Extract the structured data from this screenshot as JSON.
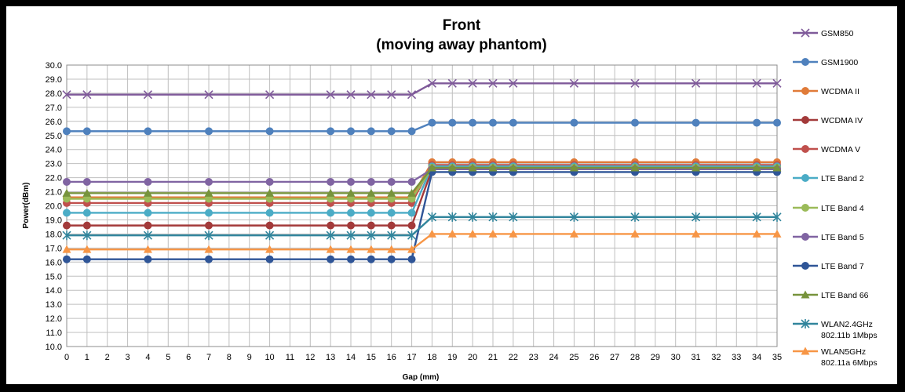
{
  "chart_data": {
    "type": "line",
    "title": "Front",
    "subtitle": "(moving away phantom)",
    "xlabel": "Gap (mm)",
    "ylabel": "Power(dBm)",
    "ylim": [
      10.0,
      30.0
    ],
    "ytick_step": 1.0,
    "x": [
      0,
      1,
      4,
      7,
      10,
      13,
      14,
      15,
      16,
      17,
      18,
      19,
      20,
      21,
      22,
      25,
      28,
      31,
      34,
      35
    ],
    "x_ticks": [
      0,
      1,
      2,
      3,
      4,
      5,
      6,
      7,
      8,
      9,
      10,
      11,
      12,
      13,
      14,
      15,
      16,
      17,
      18,
      19,
      20,
      21,
      22,
      23,
      24,
      25,
      26,
      27,
      28,
      29,
      30,
      31,
      32,
      33,
      34,
      35
    ],
    "grid": true,
    "legend_position": "right",
    "series": [
      {
        "name": "GSM850",
        "color": "#7F5A9A",
        "marker": "x",
        "low": 27.9,
        "high": 28.7
      },
      {
        "name": "GSM1900",
        "color": "#4F81BD",
        "marker": "circle",
        "low": 25.3,
        "high": 25.9
      },
      {
        "name": "WCDMA II",
        "color": "#E07B39",
        "marker": "circle",
        "low": 20.6,
        "high": 23.1
      },
      {
        "name": "WCDMA IV",
        "color": "#A33A3A",
        "marker": "circle",
        "low": 18.6,
        "high": 22.6
      },
      {
        "name": "WCDMA V",
        "color": "#C0504D",
        "marker": "circle",
        "low": 20.2,
        "high": 22.9
      },
      {
        "name": "LTE Band 2",
        "color": "#4BACC6",
        "marker": "circle",
        "low": 19.5,
        "high": 22.8
      },
      {
        "name": "LTE Band 4",
        "color": "#9BBB59",
        "marker": "circle",
        "low": 20.5,
        "high": 22.7
      },
      {
        "name": "LTE Band 5",
        "color": "#8064A2",
        "marker": "circle",
        "low": 21.7,
        "high": 22.6
      },
      {
        "name": "LTE Band 7",
        "color": "#2F5597",
        "marker": "circle",
        "low": 16.2,
        "high": 22.4
      },
      {
        "name": "LTE Band 66",
        "color": "#77933C",
        "marker": "triangle",
        "low": 20.9,
        "high": 22.7
      },
      {
        "name": "WLAN2.4GHz\n802.11b 1Mbps",
        "color": "#31859C",
        "marker": "star",
        "low": 17.9,
        "high": 19.2
      },
      {
        "name": "WLAN5GHz\n802.11a 6Mbps",
        "color": "#F79646",
        "marker": "triangle",
        "low": 16.9,
        "high": 18.0
      }
    ]
  }
}
